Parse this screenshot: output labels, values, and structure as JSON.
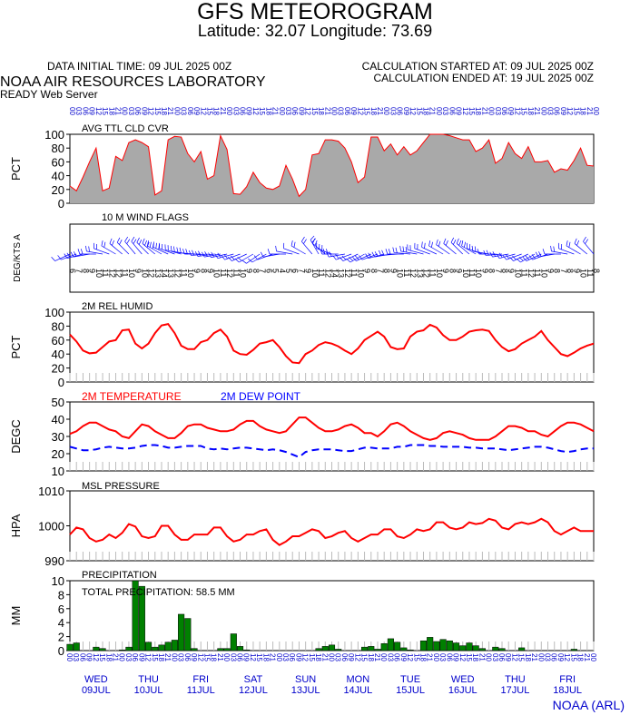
{
  "header": {
    "title": "GFS METEOROGRAM",
    "location": "Latitude: 32.07 Longitude:  73.69",
    "initial_time": "DATA INITIAL TIME: 09 JUL 2025 00Z",
    "calc_started": "CALCULATION STARTED AT: 09 JUL 2025 00Z",
    "calc_ended": "CALCULATION ENDED AT: 19 JUL 2025 00Z",
    "lab": "NOAA AIR RESOURCES LABORATORY",
    "server": "READY Web Server",
    "footer": "NOAA (ARL)"
  },
  "colors": {
    "cloud_fill": "#a9a9a9",
    "series_red": "#ff0000",
    "series_blue": "#0000ff",
    "precip_bar": "#008000",
    "label_blue": "#0000cc"
  },
  "chart_data": [
    {
      "type": "area",
      "title": "AVG TTL CLD CVR",
      "ylabel": "PCT",
      "ylim": [
        0,
        100
      ],
      "yticks": [
        0,
        20,
        40,
        60,
        80,
        100
      ],
      "x_hours": [
        0,
        3,
        6,
        9,
        12,
        15,
        18,
        21,
        24,
        27,
        30,
        33,
        36,
        39,
        42,
        45,
        48,
        51,
        54,
        57,
        60,
        63,
        66,
        69,
        72,
        75,
        78,
        81,
        84,
        87,
        90,
        93,
        96,
        99,
        102,
        105,
        108,
        111,
        114,
        117,
        120,
        123,
        126,
        129,
        132,
        135,
        138,
        141,
        144,
        147,
        150,
        153,
        156,
        159,
        162,
        165,
        168,
        171,
        174,
        177,
        180,
        183,
        186,
        189,
        192,
        195,
        198,
        201,
        204,
        207,
        210,
        213,
        216,
        219,
        222,
        225,
        228,
        231,
        234,
        237,
        240
      ],
      "values": [
        25,
        18,
        38,
        60,
        80,
        18,
        22,
        68,
        62,
        88,
        92,
        88,
        82,
        12,
        18,
        92,
        97,
        96,
        72,
        60,
        75,
        35,
        40,
        98,
        78,
        14,
        13,
        24,
        45,
        30,
        22,
        20,
        25,
        55,
        35,
        10,
        20,
        70,
        72,
        92,
        92,
        90,
        80,
        60,
        30,
        38,
        96,
        96,
        76,
        86,
        70,
        82,
        70,
        76,
        88,
        102,
        100,
        100,
        98,
        95,
        92,
        92,
        75,
        80,
        92,
        58,
        65,
        88,
        72,
        65,
        82,
        60,
        60,
        62,
        45,
        50,
        48,
        62,
        80,
        55,
        54
      ]
    },
    {
      "type": "barbs",
      "title": "10 M  WIND FLAGS",
      "ylabel": "DEG/KTS  A",
      "directions": [
        245,
        250,
        255,
        260,
        270,
        280,
        290,
        300,
        310,
        315,
        320,
        320,
        315,
        310,
        300,
        295,
        290,
        285,
        280,
        275,
        270,
        265,
        262,
        260,
        258,
        255,
        250,
        245,
        240,
        235,
        240,
        250,
        260,
        270,
        280,
        290,
        300,
        320,
        330,
        310,
        290,
        270,
        260,
        250,
        245,
        240,
        245,
        250,
        255,
        260,
        265,
        270,
        275,
        280,
        285,
        290,
        295,
        300,
        305,
        310,
        315,
        310,
        300,
        290,
        280,
        270,
        265,
        260,
        255,
        250,
        245,
        240,
        245,
        250,
        260,
        270,
        280,
        290,
        300,
        310,
        320
      ],
      "speeds": [
        6,
        7,
        8,
        9,
        10,
        11,
        12,
        12,
        11,
        10,
        9,
        10,
        12,
        13,
        14,
        13,
        12,
        11,
        10,
        9,
        8,
        9,
        10,
        11,
        12,
        11,
        10,
        9,
        8,
        7,
        6,
        5,
        4,
        5,
        6,
        7,
        9,
        10,
        11,
        12,
        14,
        13,
        12,
        11,
        10,
        9,
        8,
        7,
        8,
        9,
        10,
        11,
        12,
        13,
        12,
        11,
        10,
        9,
        8,
        9,
        10,
        11,
        10,
        9,
        8,
        7,
        8,
        9,
        10,
        11,
        12,
        11,
        10,
        9,
        8,
        7,
        8,
        9,
        10,
        11,
        8
      ]
    },
    {
      "type": "line",
      "title": "2M REL HUMID",
      "ylabel": "PCT",
      "ylim": [
        0,
        100
      ],
      "yticks": [
        0,
        20,
        40,
        60,
        80,
        100
      ],
      "values": [
        68,
        58,
        45,
        41,
        42,
        50,
        58,
        60,
        74,
        75,
        55,
        48,
        55,
        70,
        81,
        83,
        70,
        52,
        47,
        47,
        57,
        60,
        70,
        75,
        65,
        45,
        40,
        39,
        46,
        55,
        57,
        60,
        50,
        37,
        28,
        27,
        40,
        45,
        53,
        57,
        55,
        51,
        45,
        40,
        48,
        60,
        66,
        72,
        65,
        50,
        47,
        48,
        65,
        72,
        74,
        82,
        78,
        67,
        60,
        60,
        65,
        72,
        74,
        75,
        73,
        60,
        50,
        44,
        47,
        55,
        60,
        65,
        73,
        60,
        50,
        40,
        37,
        42,
        48,
        52,
        55
      ]
    },
    {
      "type": "line",
      "ylabel": "DEGC",
      "ylim": [
        10,
        50
      ],
      "yticks": [
        10,
        20,
        30,
        40,
        50
      ],
      "series": [
        {
          "name": "2M TEMPERATURE",
          "color": "#ff0000",
          "dash": false,
          "values": [
            31.5,
            33,
            36,
            38,
            38,
            36,
            34,
            33,
            30,
            29,
            33,
            37,
            36,
            33,
            31,
            29,
            29,
            32,
            36,
            37,
            37,
            35,
            34,
            33,
            33,
            34,
            37,
            39,
            39,
            36,
            34,
            33,
            32,
            33,
            37,
            41,
            41,
            38,
            35,
            33,
            33,
            34,
            36,
            37,
            35,
            32,
            32,
            30,
            33,
            37,
            38,
            36,
            33,
            31,
            29,
            28,
            29,
            32,
            33,
            32,
            31,
            29,
            28,
            28,
            28,
            30,
            33,
            36,
            36,
            35,
            33,
            33,
            31,
            30,
            33,
            36,
            38,
            38,
            37,
            35,
            33
          ]
        },
        {
          "name": "2M  DEW POINT",
          "color": "#0000ff",
          "dash": true,
          "values": [
            24,
            23,
            22,
            22,
            22.5,
            23.5,
            24,
            23.5,
            23,
            23,
            23.5,
            24.5,
            25,
            25,
            24.5,
            23.5,
            23.5,
            24,
            24.5,
            24.5,
            24.5,
            23,
            22.5,
            23,
            22.5,
            23,
            23.5,
            23.5,
            23,
            22.5,
            22,
            22.5,
            22,
            21,
            19.5,
            18,
            21,
            22,
            22.5,
            22.5,
            22.5,
            22,
            21.5,
            21.5,
            22.5,
            23.5,
            23.5,
            23,
            23,
            23,
            24,
            24,
            25,
            25,
            25,
            24.5,
            24.5,
            24,
            24,
            24,
            24,
            23.5,
            23.5,
            23,
            23,
            23,
            22.5,
            22,
            22.5,
            23,
            23.5,
            24,
            24,
            23.5,
            22.5,
            21.5,
            21,
            21.5,
            22.5,
            23,
            23
          ]
        }
      ]
    },
    {
      "type": "line",
      "title": "MSL PRESSURE",
      "ylabel": "HPA",
      "ylim": [
        990,
        1010
      ],
      "yticks": [
        990,
        1000,
        1010
      ],
      "values": [
        997.5,
        999.5,
        999,
        996.5,
        995.5,
        996,
        997.5,
        996.5,
        998,
        1000.5,
        999.8,
        997,
        996.5,
        997,
        1000,
        1000,
        997.5,
        996,
        996,
        997.5,
        997.5,
        997.5,
        999.5,
        999.5,
        997,
        995.5,
        996,
        997.5,
        997.5,
        998.5,
        999,
        996,
        994.5,
        995.5,
        997,
        997,
        998,
        999,
        998.5,
        996.5,
        997,
        998,
        998.5,
        996.5,
        995.5,
        996.5,
        997.5,
        997.5,
        999,
        999,
        997,
        996.5,
        997.5,
        999,
        998.5,
        999,
        1001,
        1001,
        999.5,
        999,
        999.5,
        1001,
        1000.5,
        1000.8,
        1002,
        1001.5,
        999.5,
        999,
        1000.5,
        1001,
        1000.5,
        1001,
        1002,
        1001,
        998.5,
        997.5,
        998.5,
        999.5,
        998.5,
        998.5,
        998.5
      ]
    },
    {
      "type": "bar",
      "title": "PRECIPITATION",
      "annotation": "TOTAL PRECIPITATION:  58.5 MM",
      "ylabel": "MM",
      "ylim": [
        0,
        10
      ],
      "yticks": [
        0,
        2,
        4,
        6,
        8,
        10
      ],
      "values": [
        0.9,
        1.1,
        0,
        0,
        0.5,
        0.3,
        0,
        0,
        0.1,
        0.5,
        10,
        9.2,
        1.2,
        0.5,
        0.8,
        1.2,
        1.5,
        5.2,
        4.6,
        0.3,
        0,
        0,
        0,
        0.3,
        0.3,
        2.4,
        0.6,
        0.1,
        0,
        0,
        0,
        0,
        0,
        0,
        0,
        0,
        0,
        0,
        0.3,
        0.6,
        0.8,
        0.2,
        0,
        0,
        0,
        0.5,
        0.6,
        0.2,
        1,
        1.7,
        1.2,
        0.4,
        0.1,
        0,
        1.4,
        1.9,
        1.3,
        1.6,
        1.4,
        1.1,
        0.7,
        1.1,
        0.7,
        0.3,
        0,
        0.5,
        0.3,
        0,
        0,
        0.4,
        0,
        0,
        0,
        0,
        0,
        0,
        0,
        0.2,
        0,
        0,
        0
      ]
    }
  ],
  "time_axis": {
    "hour_labels": [
      "00",
      "03",
      "06",
      "09",
      "12",
      "15",
      "18",
      "21",
      "00",
      "03",
      "06",
      "09",
      "12",
      "15",
      "18",
      "21",
      "00",
      "03",
      "06",
      "09",
      "12",
      "15",
      "18",
      "21",
      "00",
      "03",
      "06",
      "09",
      "12",
      "15",
      "18",
      "21",
      "00",
      "03",
      "06",
      "09",
      "12",
      "15",
      "18",
      "21",
      "00",
      "03",
      "06",
      "09",
      "12",
      "15",
      "18",
      "21",
      "00",
      "03",
      "06",
      "09",
      "12",
      "15",
      "18",
      "21",
      "00",
      "03",
      "06",
      "09",
      "12",
      "15",
      "18",
      "21",
      "00",
      "03",
      "06",
      "09",
      "12",
      "15",
      "18",
      "21",
      "00",
      "03",
      "06",
      "09",
      "12",
      "15",
      "18",
      "21",
      "00"
    ],
    "days": [
      {
        "dow": "WED",
        "date": "09JUL"
      },
      {
        "dow": "THU",
        "date": "10JUL"
      },
      {
        "dow": "FRI",
        "date": "11JUL"
      },
      {
        "dow": "SAT",
        "date": "12JUL"
      },
      {
        "dow": "SUN",
        "date": "13JUL"
      },
      {
        "dow": "MON",
        "date": "14JUL"
      },
      {
        "dow": "TUE",
        "date": "15JUL"
      },
      {
        "dow": "WED",
        "date": "16JUL"
      },
      {
        "dow": "THU",
        "date": "17JUL"
      },
      {
        "dow": "FRI",
        "date": "18JUL"
      }
    ]
  }
}
